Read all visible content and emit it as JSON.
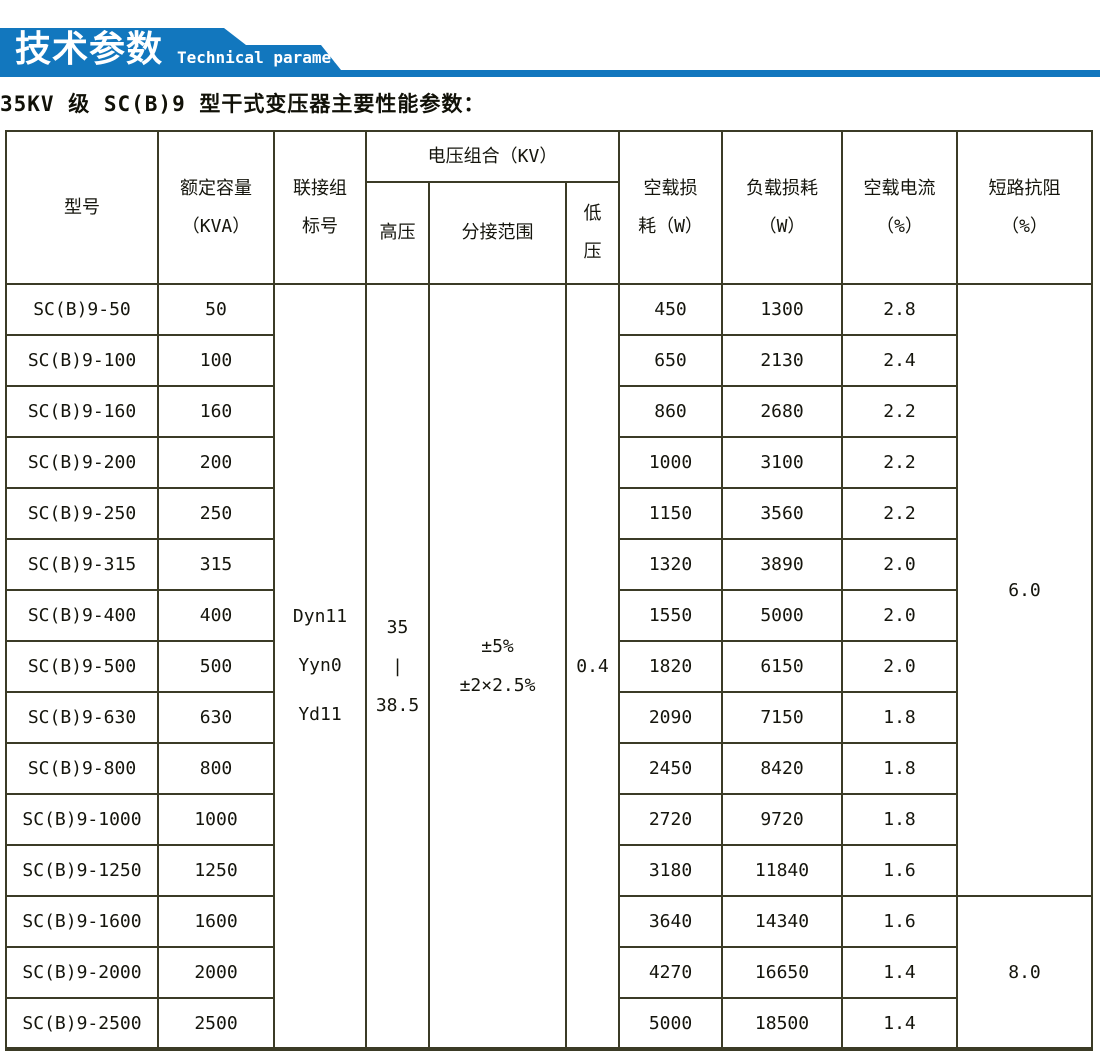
{
  "banner": {
    "title_cn": "技术参数",
    "title_en": "Technical parameter",
    "color": "#1277be"
  },
  "subtitle": "35KV 级 SC(B)9 型干式变压器主要性能参数：",
  "colors": {
    "banner_blue": "#1277be",
    "table_border": "#3b3b26",
    "text": "#15150d",
    "background": "#ffffff"
  },
  "table": {
    "headers": {
      "model": "型号",
      "capacity_l1": "额定容量",
      "capacity_l2": "（KVA）",
      "connection_l1": "联接组",
      "connection_l2": "标号",
      "voltage_group": "电压组合（KV）",
      "hv": "高压",
      "tap_range": "分接范围",
      "lv_l1": "低",
      "lv_l2": "压",
      "no_load_loss_l1": "空载损",
      "no_load_loss_l2": "耗（W）",
      "load_loss_l1": "负载损耗",
      "load_loss_l2": "（W）",
      "no_load_current_l1": "空载电流",
      "no_load_current_l2": "（%）",
      "impedance_l1": "短路抗阻",
      "impedance_l2": "（%）"
    },
    "merged": {
      "connection": [
        "Dyn11",
        "Yyn0",
        "Yd11"
      ],
      "hv": [
        "35",
        "|",
        "38.5"
      ],
      "tap_range": [
        "±5%",
        "±2×2.5%"
      ],
      "lv": "0.4",
      "impedance_top": "6.0",
      "impedance_top_rows": 12,
      "impedance_bottom": "8.0",
      "impedance_bottom_rows": 3
    },
    "rows": [
      {
        "model": "SC(B)9-50",
        "capacity": "50",
        "no_load_loss": "450",
        "load_loss": "1300",
        "no_load_current": "2.8"
      },
      {
        "model": "SC(B)9-100",
        "capacity": "100",
        "no_load_loss": "650",
        "load_loss": "2130",
        "no_load_current": "2.4"
      },
      {
        "model": "SC(B)9-160",
        "capacity": "160",
        "no_load_loss": "860",
        "load_loss": "2680",
        "no_load_current": "2.2"
      },
      {
        "model": "SC(B)9-200",
        "capacity": "200",
        "no_load_loss": "1000",
        "load_loss": "3100",
        "no_load_current": "2.2"
      },
      {
        "model": "SC(B)9-250",
        "capacity": "250",
        "no_load_loss": "1150",
        "load_loss": "3560",
        "no_load_current": "2.2"
      },
      {
        "model": "SC(B)9-315",
        "capacity": "315",
        "no_load_loss": "1320",
        "load_loss": "3890",
        "no_load_current": "2.0"
      },
      {
        "model": "SC(B)9-400",
        "capacity": "400",
        "no_load_loss": "1550",
        "load_loss": "5000",
        "no_load_current": "2.0"
      },
      {
        "model": "SC(B)9-500",
        "capacity": "500",
        "no_load_loss": "1820",
        "load_loss": "6150",
        "no_load_current": "2.0"
      },
      {
        "model": "SC(B)9-630",
        "capacity": "630",
        "no_load_loss": "2090",
        "load_loss": "7150",
        "no_load_current": "1.8"
      },
      {
        "model": "SC(B)9-800",
        "capacity": "800",
        "no_load_loss": "2450",
        "load_loss": "8420",
        "no_load_current": "1.8"
      },
      {
        "model": "SC(B)9-1000",
        "capacity": "1000",
        "no_load_loss": "2720",
        "load_loss": "9720",
        "no_load_current": "1.8"
      },
      {
        "model": "SC(B)9-1250",
        "capacity": "1250",
        "no_load_loss": "3180",
        "load_loss": "11840",
        "no_load_current": "1.6"
      },
      {
        "model": "SC(B)9-1600",
        "capacity": "1600",
        "no_load_loss": "3640",
        "load_loss": "14340",
        "no_load_current": "1.6"
      },
      {
        "model": "SC(B)9-2000",
        "capacity": "2000",
        "no_load_loss": "4270",
        "load_loss": "16650",
        "no_load_current": "1.4"
      },
      {
        "model": "SC(B)9-2500",
        "capacity": "2500",
        "no_load_loss": "5000",
        "load_loss": "18500",
        "no_load_current": "1.4"
      }
    ]
  }
}
